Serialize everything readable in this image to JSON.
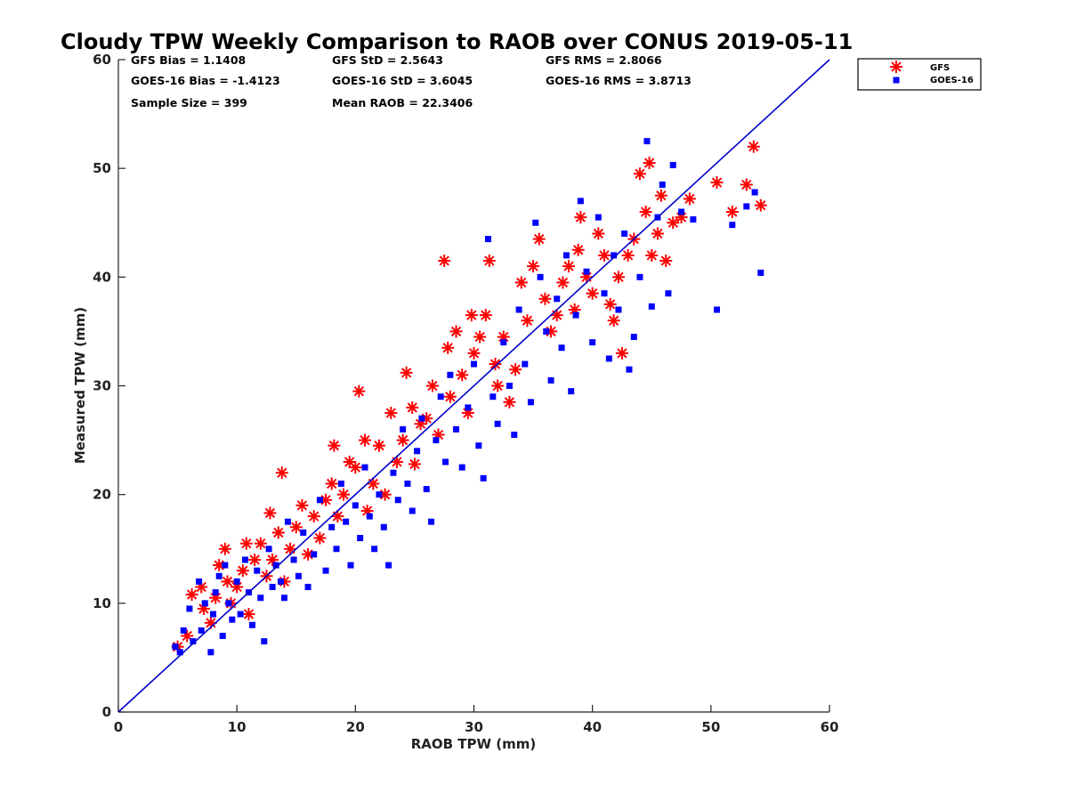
{
  "chart_data": {
    "type": "scatter",
    "title": "Cloudy TPW Weekly Comparison to RAOB over CONUS 2019-05-11",
    "xlabel": "RAOB TPW (mm)",
    "ylabel": "Measured TPW (mm)",
    "xlim": [
      0,
      60
    ],
    "ylim": [
      0,
      60
    ],
    "xticks": [
      "0",
      "10",
      "20",
      "30",
      "40",
      "50",
      "60"
    ],
    "yticks": [
      "0",
      "10",
      "20",
      "30",
      "40",
      "50",
      "60"
    ],
    "grid": false,
    "legend_position": "top-right, outside",
    "stats": {
      "gfs_bias": "GFS Bias = 1.1408",
      "gfs_std": "GFS StD = 2.5643",
      "gfs_rms": "GFS RMS = 2.8066",
      "goes_bias": "GOES-16 Bias = -1.4123",
      "goes_std": "GOES-16 StD = 3.6045",
      "goes_rms": "GOES-16 RMS = 3.8713",
      "sample_size": "Sample Size = 399",
      "mean_raob": "Mean RAOB = 22.3406"
    },
    "reference_line": {
      "x": [
        0,
        60
      ],
      "y": [
        0,
        60
      ],
      "color": "#0000cc"
    },
    "series": [
      {
        "name": "GFS",
        "marker": "asterisk",
        "color": "#ff0000",
        "points": [
          [
            5,
            6
          ],
          [
            5.8,
            7
          ],
          [
            6.2,
            10.8
          ],
          [
            7,
            11.5
          ],
          [
            7.2,
            9.5
          ],
          [
            7.8,
            8.2
          ],
          [
            8.2,
            10.5
          ],
          [
            8.5,
            13.5
          ],
          [
            9,
            15
          ],
          [
            9.2,
            12
          ],
          [
            9.5,
            10
          ],
          [
            10,
            11.5
          ],
          [
            10.5,
            13
          ],
          [
            10.8,
            15.5
          ],
          [
            11,
            9
          ],
          [
            11.5,
            14
          ],
          [
            12,
            15.5
          ],
          [
            12.5,
            12.5
          ],
          [
            12.8,
            18.3
          ],
          [
            13,
            14
          ],
          [
            13.5,
            16.5
          ],
          [
            13.8,
            22
          ],
          [
            14,
            12
          ],
          [
            14.5,
            15
          ],
          [
            15,
            17
          ],
          [
            15.5,
            19
          ],
          [
            16,
            14.5
          ],
          [
            16.5,
            18
          ],
          [
            17,
            16
          ],
          [
            17.5,
            19.5
          ],
          [
            18,
            21
          ],
          [
            18.2,
            24.5
          ],
          [
            18.5,
            18
          ],
          [
            19,
            20
          ],
          [
            19.5,
            23
          ],
          [
            20,
            22.5
          ],
          [
            20.3,
            29.5
          ],
          [
            20.8,
            25
          ],
          [
            21,
            18.5
          ],
          [
            21.5,
            21
          ],
          [
            22,
            24.5
          ],
          [
            22.5,
            20
          ],
          [
            23,
            27.5
          ],
          [
            23.5,
            23
          ],
          [
            24,
            25
          ],
          [
            24.3,
            31.2
          ],
          [
            24.8,
            28
          ],
          [
            25,
            22.8
          ],
          [
            25.5,
            26.5
          ],
          [
            26,
            27
          ],
          [
            26.5,
            30
          ],
          [
            27,
            25.5
          ],
          [
            27.5,
            41.5
          ],
          [
            27.8,
            33.5
          ],
          [
            28,
            29
          ],
          [
            28.5,
            35
          ],
          [
            29,
            31
          ],
          [
            29.5,
            27.5
          ],
          [
            29.8,
            36.5
          ],
          [
            30,
            33
          ],
          [
            30.5,
            34.5
          ],
          [
            31,
            36.5
          ],
          [
            31.3,
            41.5
          ],
          [
            31.8,
            32
          ],
          [
            32,
            30
          ],
          [
            32.5,
            34.5
          ],
          [
            33,
            28.5
          ],
          [
            33.5,
            31.5
          ],
          [
            34,
            39.5
          ],
          [
            34.5,
            36
          ],
          [
            35,
            41
          ],
          [
            35.5,
            43.5
          ],
          [
            36,
            38
          ],
          [
            36.5,
            35
          ],
          [
            37,
            36.5
          ],
          [
            37.5,
            39.5
          ],
          [
            38,
            41
          ],
          [
            38.5,
            37
          ],
          [
            38.8,
            42.5
          ],
          [
            39,
            45.5
          ],
          [
            39.5,
            40
          ],
          [
            40,
            38.5
          ],
          [
            40.5,
            44
          ],
          [
            41,
            42
          ],
          [
            41.5,
            37.5
          ],
          [
            41.8,
            36
          ],
          [
            42.2,
            40
          ],
          [
            42.5,
            33
          ],
          [
            43,
            42
          ],
          [
            43.5,
            43.5
          ],
          [
            44,
            49.5
          ],
          [
            44.5,
            46
          ],
          [
            44.8,
            50.5
          ],
          [
            45,
            42
          ],
          [
            45.5,
            44
          ],
          [
            45.8,
            47.5
          ],
          [
            46.2,
            41.5
          ],
          [
            46.8,
            45
          ],
          [
            47.5,
            45.5
          ],
          [
            48.2,
            47.2
          ],
          [
            50.5,
            48.7
          ],
          [
            51.8,
            46
          ],
          [
            53,
            48.5
          ],
          [
            53.6,
            52
          ],
          [
            54.2,
            46.6
          ]
        ]
      },
      {
        "name": "GOES-16",
        "marker": "square",
        "color": "#0000ff",
        "points": [
          [
            4.8,
            6
          ],
          [
            5.2,
            5.5
          ],
          [
            5.5,
            7.5
          ],
          [
            6,
            9.5
          ],
          [
            6.3,
            6.5
          ],
          [
            6.8,
            12
          ],
          [
            7,
            7.5
          ],
          [
            7.3,
            10
          ],
          [
            7.8,
            5.5
          ],
          [
            8,
            9
          ],
          [
            8.2,
            11
          ],
          [
            8.5,
            12.5
          ],
          [
            8.8,
            7
          ],
          [
            9,
            13.5
          ],
          [
            9.3,
            10
          ],
          [
            9.6,
            8.5
          ],
          [
            10,
            12
          ],
          [
            10.3,
            9
          ],
          [
            10.7,
            14
          ],
          [
            11,
            11
          ],
          [
            11.3,
            8
          ],
          [
            11.7,
            13
          ],
          [
            12,
            10.5
          ],
          [
            12.3,
            6.5
          ],
          [
            12.7,
            15
          ],
          [
            13,
            11.5
          ],
          [
            13.3,
            13.5
          ],
          [
            13.7,
            12
          ],
          [
            14,
            10.5
          ],
          [
            14.3,
            17.5
          ],
          [
            14.8,
            14
          ],
          [
            15.2,
            12.5
          ],
          [
            15.6,
            16.5
          ],
          [
            16,
            11.5
          ],
          [
            16.5,
            14.5
          ],
          [
            17,
            19.5
          ],
          [
            17.5,
            13
          ],
          [
            18,
            17
          ],
          [
            18.4,
            15
          ],
          [
            18.8,
            21
          ],
          [
            19.2,
            17.5
          ],
          [
            19.6,
            13.5
          ],
          [
            20,
            19
          ],
          [
            20.4,
            16
          ],
          [
            20.8,
            22.5
          ],
          [
            21.2,
            18
          ],
          [
            21.6,
            15
          ],
          [
            22,
            20
          ],
          [
            22.4,
            17
          ],
          [
            22.8,
            13.5
          ],
          [
            23.2,
            22
          ],
          [
            23.6,
            19.5
          ],
          [
            24,
            26
          ],
          [
            24.4,
            21
          ],
          [
            24.8,
            18.5
          ],
          [
            25.2,
            24
          ],
          [
            25.6,
            27
          ],
          [
            26,
            20.5
          ],
          [
            26.4,
            17.5
          ],
          [
            26.8,
            25
          ],
          [
            27.2,
            29
          ],
          [
            27.6,
            23
          ],
          [
            28,
            31
          ],
          [
            28.5,
            26
          ],
          [
            29,
            22.5
          ],
          [
            29.5,
            28
          ],
          [
            30,
            32
          ],
          [
            30.4,
            24.5
          ],
          [
            30.8,
            21.5
          ],
          [
            31.2,
            43.5
          ],
          [
            31.6,
            29
          ],
          [
            32,
            26.5
          ],
          [
            32.5,
            34
          ],
          [
            33,
            30
          ],
          [
            33.4,
            25.5
          ],
          [
            33.8,
            37
          ],
          [
            34.3,
            32
          ],
          [
            34.8,
            28.5
          ],
          [
            35.2,
            45
          ],
          [
            35.6,
            40
          ],
          [
            36.1,
            35
          ],
          [
            36.5,
            30.5
          ],
          [
            37,
            38
          ],
          [
            37.4,
            33.5
          ],
          [
            37.8,
            42
          ],
          [
            38.2,
            29.5
          ],
          [
            38.6,
            36.5
          ],
          [
            39,
            47
          ],
          [
            39.5,
            40.5
          ],
          [
            40,
            34
          ],
          [
            40.5,
            45.5
          ],
          [
            41,
            38.5
          ],
          [
            41.4,
            32.5
          ],
          [
            41.8,
            42
          ],
          [
            42.2,
            37
          ],
          [
            42.7,
            44
          ],
          [
            43.1,
            31.5
          ],
          [
            43.5,
            34.5
          ],
          [
            44,
            40
          ],
          [
            44.6,
            52.5
          ],
          [
            45,
            37.3
          ],
          [
            45.5,
            45.5
          ],
          [
            45.9,
            48.5
          ],
          [
            46.4,
            38.5
          ],
          [
            46.8,
            50.3
          ],
          [
            47.5,
            46
          ],
          [
            48.5,
            45.3
          ],
          [
            50.5,
            37
          ],
          [
            51.8,
            44.8
          ],
          [
            53,
            46.5
          ],
          [
            53.7,
            47.8
          ],
          [
            54.2,
            40.4
          ]
        ]
      }
    ]
  }
}
